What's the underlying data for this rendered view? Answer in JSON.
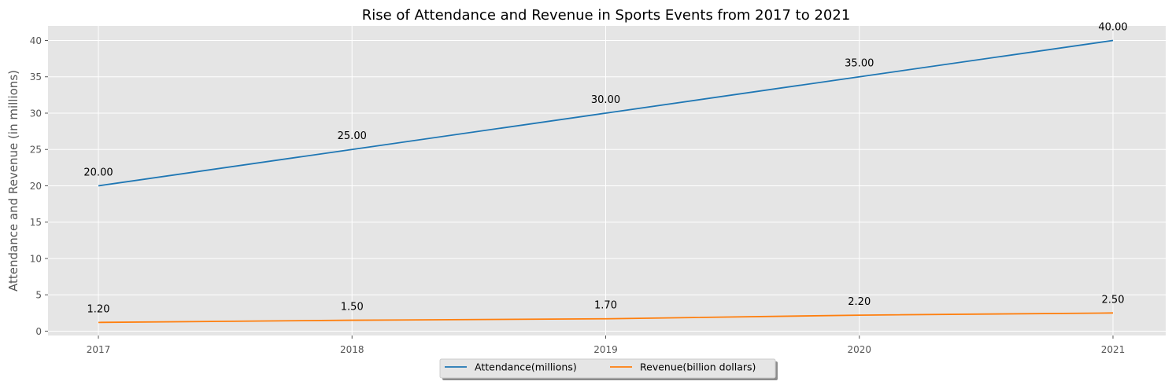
{
  "chart_data": {
    "type": "line",
    "title": "Rise of Attendance and Revenue in Sports Events from 2017 to 2021",
    "xlabel": "",
    "ylabel": "Attendance and Revenue (in millions)",
    "categories": [
      "2017",
      "2018",
      "2019",
      "2020",
      "2021"
    ],
    "ylim": [
      -0.6,
      42
    ],
    "yticks": [
      0,
      5,
      10,
      15,
      20,
      25,
      30,
      35,
      40
    ],
    "grid": true,
    "legend_position": "bottom-center",
    "background_color": "#e5e5e5",
    "series": [
      {
        "name": "Attendance(millions)",
        "color": "#1f77b4",
        "values": [
          20,
          25,
          30,
          35,
          40
        ],
        "labels": [
          "20.00",
          "25.00",
          "30.00",
          "35.00",
          "40.00"
        ]
      },
      {
        "name": "Revenue(billion dollars)",
        "color": "#ff7f0e",
        "values": [
          1.2,
          1.5,
          1.7,
          2.2,
          2.5
        ],
        "labels": [
          "1.20",
          "1.50",
          "1.70",
          "2.20",
          "2.50"
        ]
      }
    ]
  }
}
